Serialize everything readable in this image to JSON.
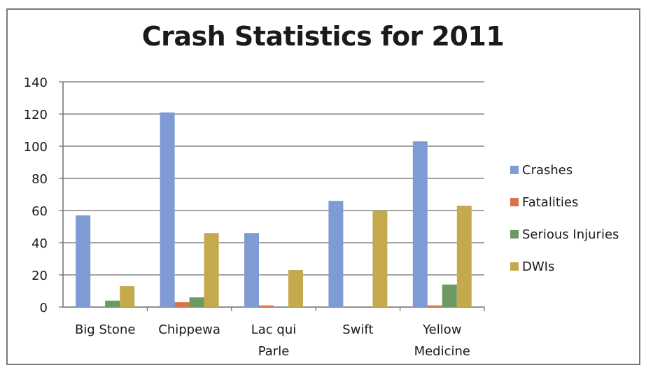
{
  "chart_data": {
    "type": "bar",
    "title": "Crash Statistics for 2011",
    "categories": [
      [
        "Big Stone"
      ],
      [
        "Chippewa"
      ],
      [
        "Lac qui",
        "Parle"
      ],
      [
        "Swift"
      ],
      [
        "Yellow",
        "Medicine"
      ]
    ],
    "series": [
      {
        "name": "Crashes",
        "color": "#7f9bd3",
        "values": [
          57,
          121,
          46,
          66,
          103
        ]
      },
      {
        "name": "Fatalities",
        "color": "#d8744a",
        "values": [
          0,
          3,
          1,
          0,
          1
        ]
      },
      {
        "name": "Serious Injuries",
        "color": "#6c9a62",
        "values": [
          4,
          6,
          0,
          0,
          14
        ]
      },
      {
        "name": "DWIs",
        "color": "#c4a94d",
        "values": [
          13,
          46,
          23,
          60,
          63
        ]
      }
    ],
    "ylim": [
      0,
      140
    ],
    "yticks": [
      0,
      20,
      40,
      60,
      80,
      100,
      120,
      140
    ],
    "grid": true,
    "legend": "right"
  }
}
